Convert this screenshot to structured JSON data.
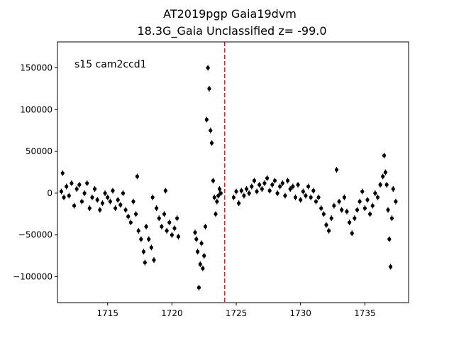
{
  "chart_data": {
    "type": "scatter",
    "title": "AT2019pgp  Gaia19dvm",
    "subtitle": "18.3G_Gaia Unclassified z= -99.0",
    "annotation": "s15 cam2ccd1",
    "xlabel": "",
    "ylabel": "",
    "xlim": [
      1711.1,
      1738.4
    ],
    "ylim": [
      -131000,
      181000
    ],
    "x_ticks": [
      1715,
      1720,
      1725,
      1730,
      1735
    ],
    "x_tick_labels": [
      "1715",
      "1720",
      "1725",
      "1730",
      "1735"
    ],
    "y_ticks": [
      -100000,
      -50000,
      0,
      50000,
      100000,
      150000
    ],
    "y_tick_labels": [
      "−100000",
      "−50000",
      "0",
      "50000",
      "100000",
      "150000"
    ],
    "vline": {
      "x": 1724.1,
      "color": "#d62728",
      "style": "dashed"
    },
    "marker_color": "#000000",
    "grid": false,
    "series": [
      {
        "points": [
          [
            1711.4,
            2000
          ],
          [
            1711.5,
            24000
          ],
          [
            1711.6,
            -5000
          ],
          [
            1711.8,
            8000
          ],
          [
            1712.0,
            -3000
          ],
          [
            1712.2,
            12000
          ],
          [
            1712.4,
            -15000
          ],
          [
            1712.6,
            5000
          ],
          [
            1712.8,
            10000
          ],
          [
            1713.0,
            -10000
          ],
          [
            1713.2,
            0
          ],
          [
            1713.4,
            12000
          ],
          [
            1713.6,
            -18000
          ],
          [
            1713.8,
            -5000
          ],
          [
            1714.0,
            5000
          ],
          [
            1714.2,
            -8000
          ],
          [
            1714.4,
            -20000
          ],
          [
            1714.6,
            -12000
          ],
          [
            1714.8,
            0
          ],
          [
            1715.0,
            -5000
          ],
          [
            1715.2,
            -10000
          ],
          [
            1715.4,
            3000
          ],
          [
            1715.6,
            -18000
          ],
          [
            1715.8,
            -8000
          ],
          [
            1716.0,
            -14000
          ],
          [
            1716.2,
            0
          ],
          [
            1716.4,
            -20000
          ],
          [
            1716.6,
            -28000
          ],
          [
            1716.8,
            -35000
          ],
          [
            1717.0,
            -10000
          ],
          [
            1717.2,
            -25000
          ],
          [
            1717.3,
            20000
          ],
          [
            1717.4,
            -45000
          ],
          [
            1717.6,
            -55000
          ],
          [
            1717.8,
            -70000
          ],
          [
            1717.9,
            -83000
          ],
          [
            1718.0,
            -40000
          ],
          [
            1718.2,
            -55000
          ],
          [
            1718.4,
            -65000
          ],
          [
            1718.5,
            -5000
          ],
          [
            1718.6,
            -80000
          ],
          [
            1718.8,
            -18000
          ],
          [
            1719.0,
            -30000
          ],
          [
            1719.2,
            -40000
          ],
          [
            1719.4,
            -25000
          ],
          [
            1719.5,
            3000
          ],
          [
            1719.6,
            -45000
          ],
          [
            1719.8,
            -35000
          ],
          [
            1720.0,
            -50000
          ],
          [
            1720.2,
            -42000
          ],
          [
            1720.4,
            -30000
          ],
          [
            1720.5,
            -52000
          ],
          [
            1721.8,
            -47000
          ],
          [
            1721.9,
            -55000
          ],
          [
            1722.0,
            -70000
          ],
          [
            1722.1,
            -113000
          ],
          [
            1722.2,
            -85000
          ],
          [
            1722.3,
            -60000
          ],
          [
            1722.4,
            -90000
          ],
          [
            1722.5,
            -75000
          ],
          [
            1722.6,
            -40000
          ],
          [
            1722.7,
            88000
          ],
          [
            1722.8,
            150000
          ],
          [
            1722.9,
            125000
          ],
          [
            1723.0,
            75000
          ],
          [
            1723.1,
            60000
          ],
          [
            1723.2,
            15000
          ],
          [
            1723.3,
            -5000
          ],
          [
            1723.4,
            -25000
          ],
          [
            1723.5,
            -10000
          ],
          [
            1723.6,
            -3000
          ],
          [
            1723.7,
            5000
          ],
          [
            1723.8,
            0
          ],
          [
            1724.8,
            -5000
          ],
          [
            1725.0,
            2000
          ],
          [
            1725.2,
            -12000
          ],
          [
            1725.4,
            3000
          ],
          [
            1725.6,
            -3000
          ],
          [
            1725.8,
            5000
          ],
          [
            1726.0,
            0
          ],
          [
            1726.2,
            8000
          ],
          [
            1726.4,
            15000
          ],
          [
            1726.6,
            2000
          ],
          [
            1726.8,
            10000
          ],
          [
            1727.0,
            5000
          ],
          [
            1727.2,
            12000
          ],
          [
            1727.4,
            18000
          ],
          [
            1727.6,
            3000
          ],
          [
            1727.8,
            10000
          ],
          [
            1728.0,
            15000
          ],
          [
            1728.2,
            0
          ],
          [
            1728.4,
            8000
          ],
          [
            1728.6,
            12000
          ],
          [
            1728.8,
            -3000
          ],
          [
            1729.0,
            15000
          ],
          [
            1729.2,
            5000
          ],
          [
            1729.4,
            8000
          ],
          [
            1729.6,
            -5000
          ],
          [
            1729.8,
            10000
          ],
          [
            1730.0,
            -8000
          ],
          [
            1730.2,
            2000
          ],
          [
            1730.4,
            -3000
          ],
          [
            1730.6,
            8000
          ],
          [
            1730.8,
            -5000
          ],
          [
            1731.0,
            3000
          ],
          [
            1731.2,
            -10000
          ],
          [
            1731.4,
            -5000
          ],
          [
            1731.6,
            -18000
          ],
          [
            1731.8,
            -25000
          ],
          [
            1732.0,
            -38000
          ],
          [
            1732.2,
            -45000
          ],
          [
            1732.4,
            -30000
          ],
          [
            1732.6,
            -15000
          ],
          [
            1732.8,
            28000
          ],
          [
            1733.0,
            -10000
          ],
          [
            1733.2,
            -20000
          ],
          [
            1733.4,
            -5000
          ],
          [
            1733.6,
            -22000
          ],
          [
            1733.8,
            -35000
          ],
          [
            1734.0,
            -48000
          ],
          [
            1734.2,
            -30000
          ],
          [
            1734.4,
            -20000
          ],
          [
            1734.6,
            -10000
          ],
          [
            1734.8,
            2000
          ],
          [
            1735.0,
            -18000
          ],
          [
            1735.2,
            -8000
          ],
          [
            1735.4,
            -25000
          ],
          [
            1735.6,
            -15000
          ],
          [
            1735.8,
            0
          ],
          [
            1736.0,
            -5000
          ],
          [
            1736.2,
            10000
          ],
          [
            1736.4,
            20000
          ],
          [
            1736.5,
            45000
          ],
          [
            1736.6,
            25000
          ],
          [
            1736.7,
            10000
          ],
          [
            1736.8,
            -20000
          ],
          [
            1736.9,
            -55000
          ],
          [
            1737.0,
            -88000
          ],
          [
            1737.1,
            -30000
          ],
          [
            1737.2,
            5000
          ],
          [
            1737.4,
            -10000
          ]
        ]
      }
    ]
  }
}
